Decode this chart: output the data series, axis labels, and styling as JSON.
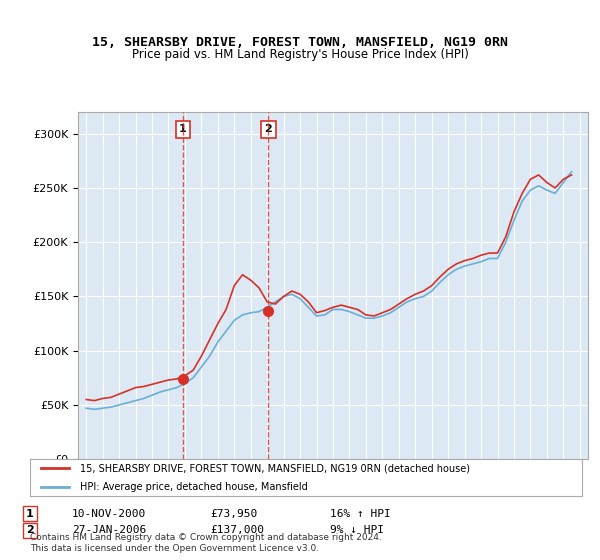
{
  "title": "15, SHEARSBY DRIVE, FOREST TOWN, MANSFIELD, NG19 0RN",
  "subtitle": "Price paid vs. HM Land Registry's House Price Index (HPI)",
  "ylabel": "",
  "background_color": "#ffffff",
  "plot_bg_color": "#dce9f5",
  "grid_color": "#ffffff",
  "sale1": {
    "date": 2000.87,
    "price": 73950,
    "label": "1"
  },
  "sale2": {
    "date": 2006.07,
    "price": 137000,
    "label": "2"
  },
  "legend_entry1": "15, SHEARSBY DRIVE, FOREST TOWN, MANSFIELD, NG19 0RN (detached house)",
  "legend_entry2": "HPI: Average price, detached house, Mansfield",
  "table_row1": "1     10-NOV-2000          £73,950          16% ↑ HPI",
  "table_row2": "2     27-JAN-2006          £137,000          9% ↓ HPI",
  "footnote": "Contains HM Land Registry data © Crown copyright and database right 2024.\nThis data is licensed under the Open Government Licence v3.0.",
  "hpi_color": "#6baed6",
  "price_color": "#d73027",
  "vline_color": "#d73027",
  "ylim": [
    0,
    320000
  ],
  "xlim": [
    1994.5,
    2025.5
  ]
}
